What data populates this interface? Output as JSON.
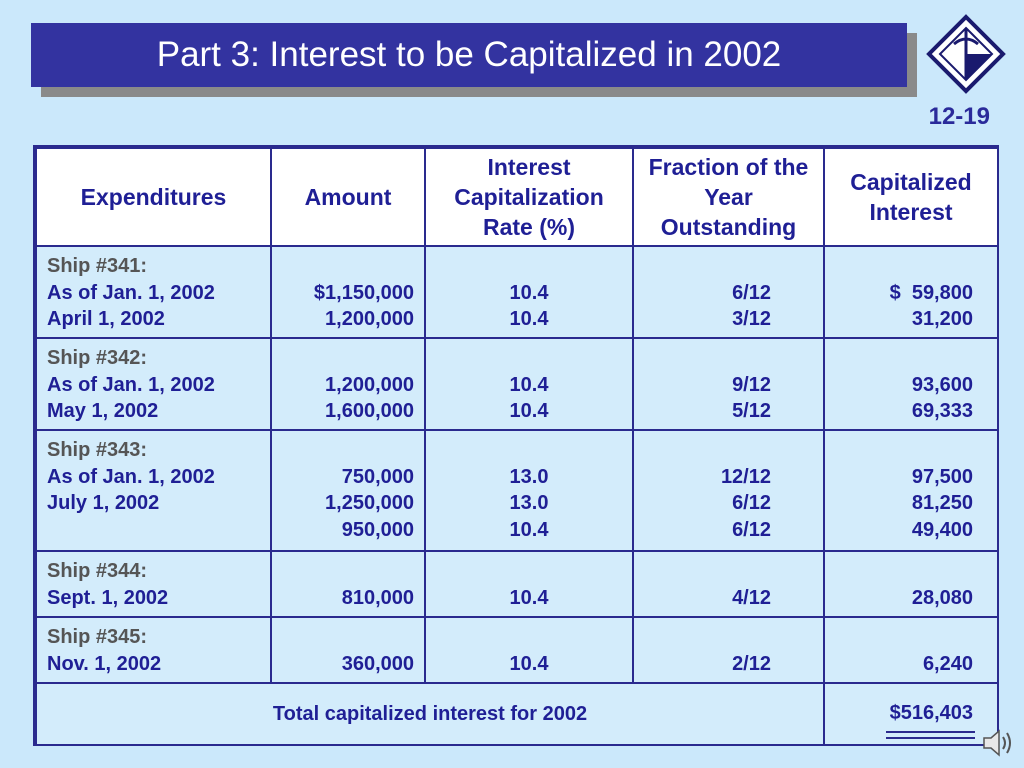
{
  "slide": {
    "title": "Part 3:  Interest to be Capitalized in 2002",
    "page_number": "12-19"
  },
  "table": {
    "headers": {
      "expenditures": "Expenditures",
      "amount": "Amount",
      "rate": "Interest Capitalization Rate (%)",
      "fraction": "Fraction of the Year Outstanding",
      "capitalized": "Capitalized Interest"
    },
    "groups": [
      {
        "label": "Ship #341:",
        "rows": [
          {
            "expenditure": "As of Jan. 1, 2002",
            "amount": "$1,150,000",
            "rate": "10.4",
            "fraction": "6/12",
            "capitalized": "$  59,800"
          },
          {
            "expenditure": "April 1, 2002",
            "amount": "1,200,000",
            "rate": "10.4",
            "fraction": "3/12",
            "capitalized": "31,200"
          }
        ]
      },
      {
        "label": "Ship #342:",
        "rows": [
          {
            "expenditure": "As of Jan. 1, 2002",
            "amount": "1,200,000",
            "rate": "10.4",
            "fraction": "9/12",
            "capitalized": "93,600"
          },
          {
            "expenditure": "May 1, 2002",
            "amount": "1,600,000",
            "rate": "10.4",
            "fraction": "5/12",
            "capitalized": "69,333"
          }
        ]
      },
      {
        "label": "Ship #343:",
        "rows": [
          {
            "expenditure": "As of Jan. 1, 2002",
            "amount": "750,000",
            "rate": "13.0",
            "fraction": "12/12",
            "capitalized": "97,500"
          },
          {
            "expenditure": "July 1, 2002",
            "amount": "1,250,000",
            "rate": "13.0",
            "fraction": "6/12",
            "capitalized": "81,250"
          },
          {
            "expenditure": "",
            "amount": "950,000",
            "rate": "10.4",
            "fraction": "6/12",
            "capitalized": "49,400"
          }
        ]
      },
      {
        "label": "Ship #344:",
        "rows": [
          {
            "expenditure": "Sept. 1, 2002",
            "amount": "810,000",
            "rate": "10.4",
            "fraction": "4/12",
            "capitalized": "28,080"
          }
        ]
      },
      {
        "label": "Ship #345:",
        "rows": [
          {
            "expenditure": "Nov. 1, 2002",
            "amount": "360,000",
            "rate": "10.4",
            "fraction": "2/12",
            "capitalized": "6,240"
          }
        ]
      }
    ],
    "total": {
      "label": "Total capitalized interest for 2002",
      "value": "$516,403"
    }
  },
  "icons": {
    "logo": "diamond-logo-icon",
    "audio": "speaker-icon"
  },
  "colors": {
    "background": "#cbe8fb",
    "title_bar": "#3333a0",
    "text": "#1f1f95",
    "header_background": "#ffffff"
  }
}
